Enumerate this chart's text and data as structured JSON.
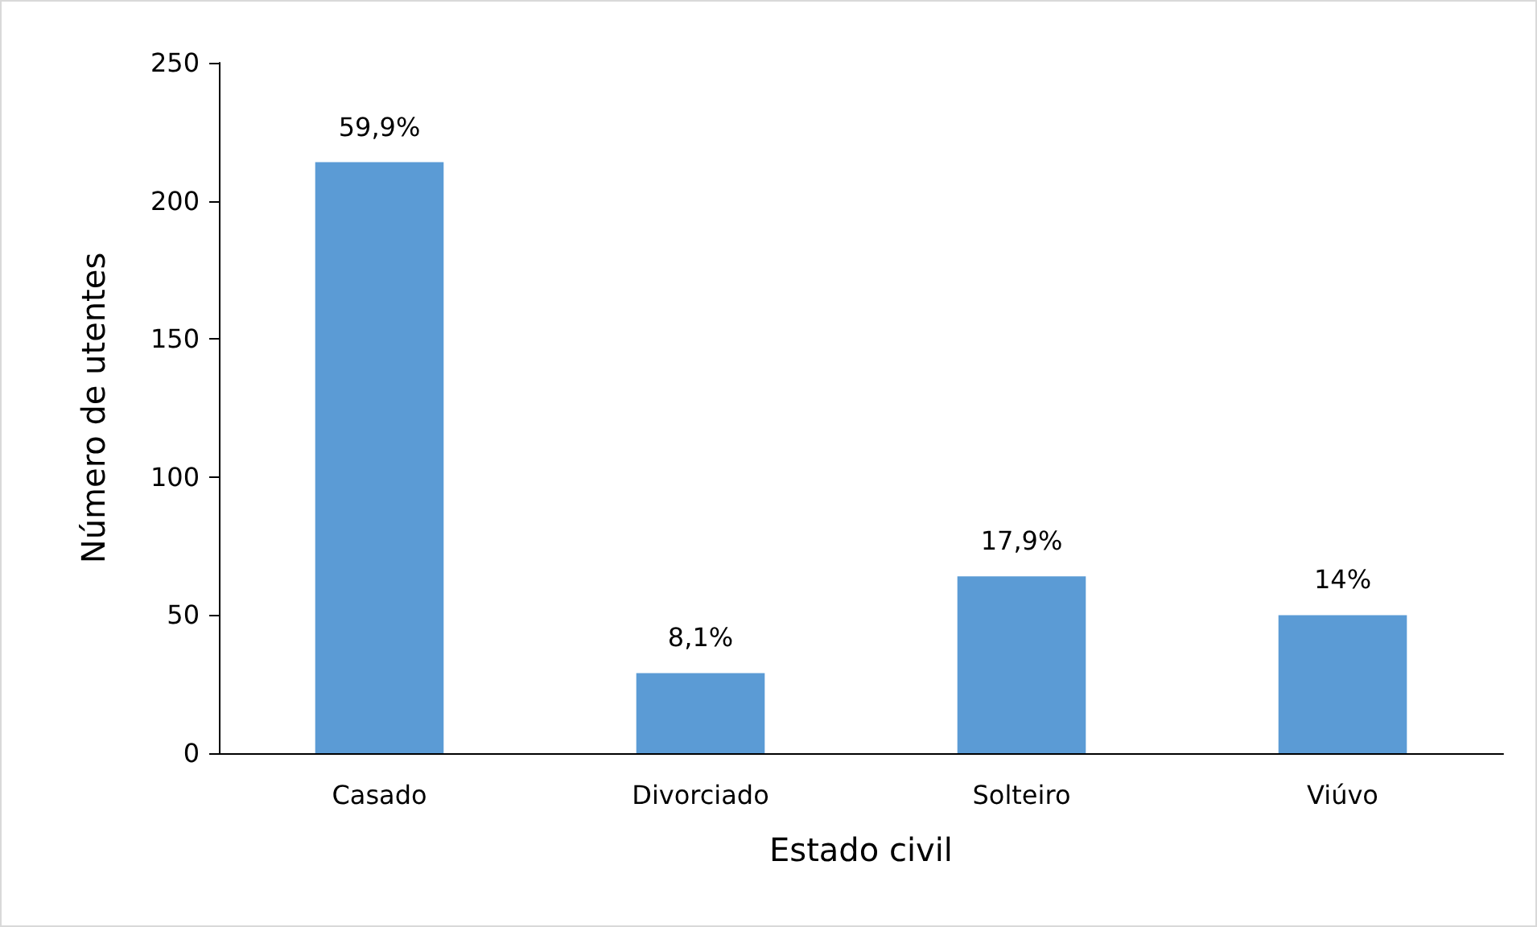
{
  "chart_data": {
    "type": "bar",
    "xlabel": "Estado civil",
    "ylabel": "Número de utentes",
    "categories": [
      "Casado",
      "Divorciado",
      "Solteiro",
      "Viúvo"
    ],
    "values": [
      214,
      29,
      64,
      50
    ],
    "annotations": [
      {
        "text": "59,9%",
        "x": "Casado",
        "y": 214
      },
      {
        "text": "8,1%",
        "x": "Divorciado",
        "y": 29
      },
      {
        "text": "17,9%",
        "x": "Solteiro",
        "y": 64
      },
      {
        "text": "14%",
        "x": "Viúvo",
        "y": 50
      }
    ],
    "color": "#5b9bd5",
    "ylim": [
      0,
      250
    ],
    "yticks": [
      0,
      50,
      100,
      150,
      200,
      250
    ],
    "grid": false
  }
}
